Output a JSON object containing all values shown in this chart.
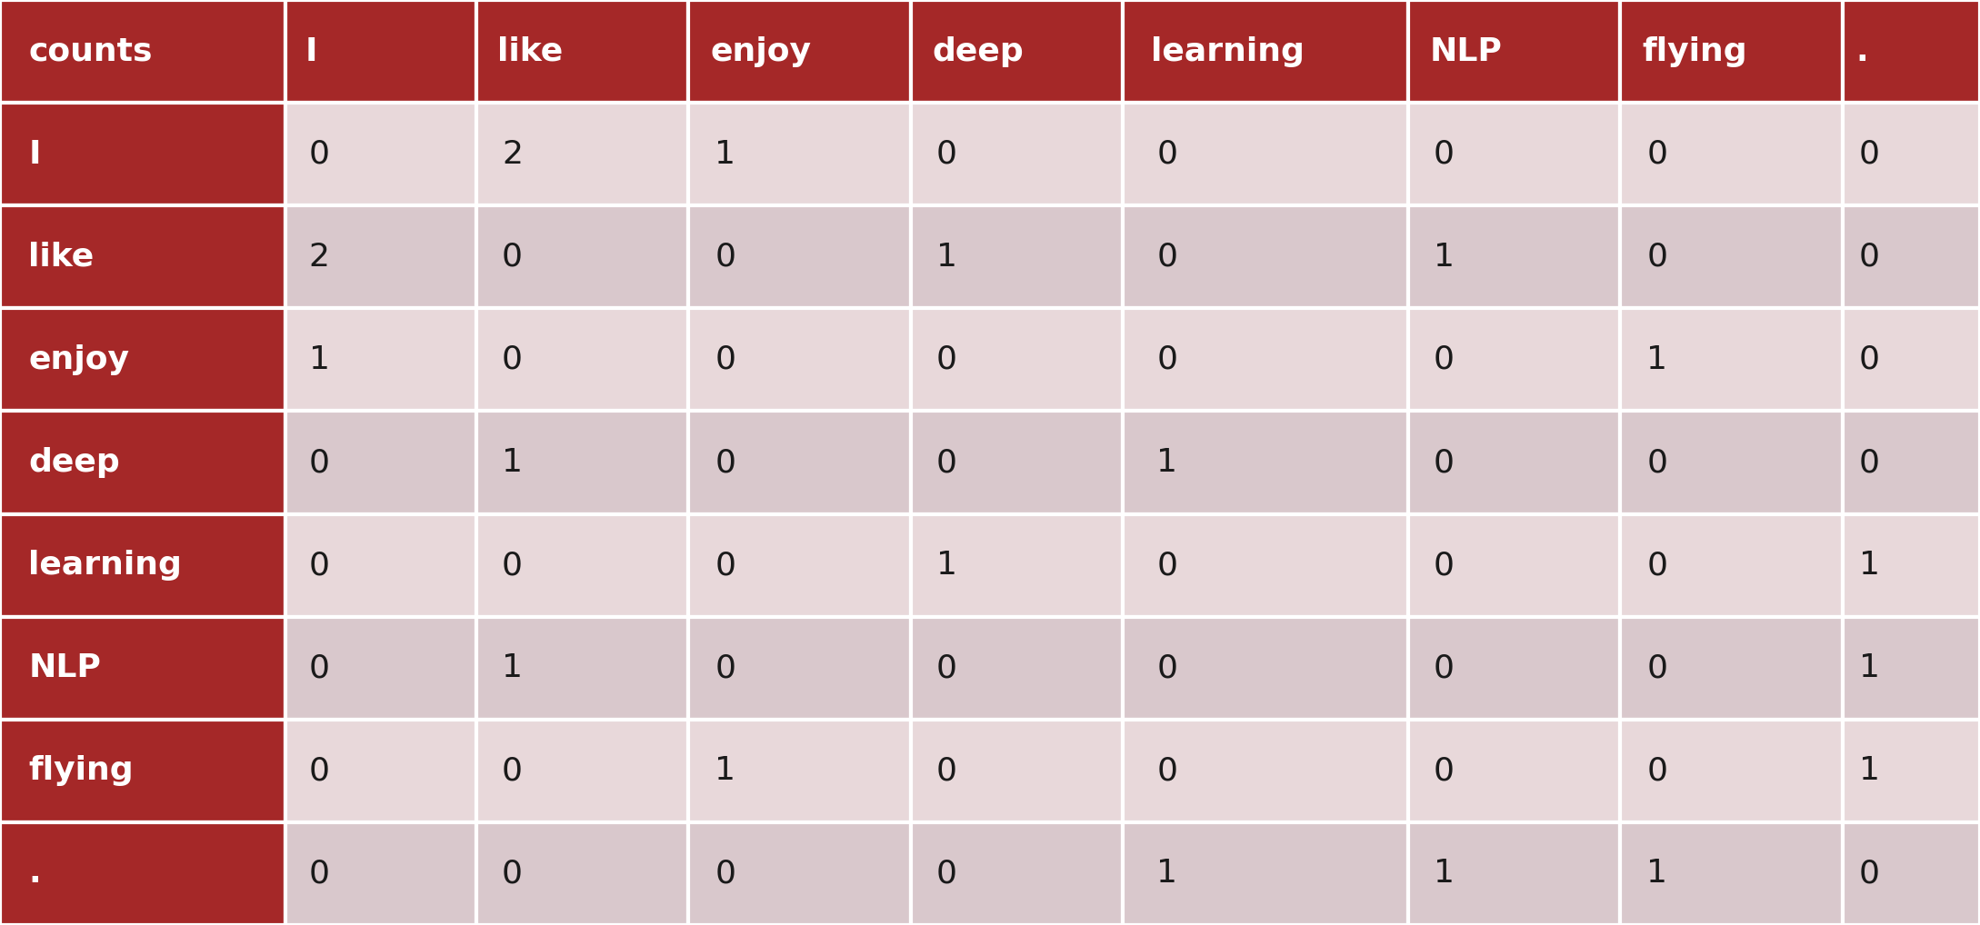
{
  "col_headers": [
    "counts",
    "I",
    "like",
    "enjoy",
    "deep",
    "learning",
    "NLP",
    "flying",
    "."
  ],
  "row_headers": [
    "I",
    "like",
    "enjoy",
    "deep",
    "learning",
    "NLP",
    "flying",
    "."
  ],
  "matrix": [
    [
      0,
      2,
      1,
      0,
      0,
      0,
      0,
      0
    ],
    [
      2,
      0,
      0,
      1,
      0,
      1,
      0,
      0
    ],
    [
      1,
      0,
      0,
      0,
      0,
      0,
      1,
      0
    ],
    [
      0,
      1,
      0,
      0,
      1,
      0,
      0,
      0
    ],
    [
      0,
      0,
      0,
      1,
      0,
      0,
      0,
      1
    ],
    [
      0,
      1,
      0,
      0,
      0,
      0,
      0,
      1
    ],
    [
      0,
      0,
      1,
      0,
      0,
      0,
      0,
      1
    ],
    [
      0,
      0,
      0,
      0,
      1,
      1,
      1,
      0
    ]
  ],
  "header_bg": "#A52828",
  "row_header_bg": "#A52828",
  "cell_bg_light": "#E8D8DA",
  "cell_bg_dark": "#D9C8CC",
  "header_text_color": "#FFFFFF",
  "cell_text_color": "#1a1a1a",
  "row_header_text_color": "#FFFFFF",
  "header_font_size": 26,
  "cell_font_size": 26,
  "row_header_font_size": 26,
  "grid_color": "#FFFFFF",
  "grid_linewidth": 3,
  "background_color": "#FFFFFF",
  "col_widths_raw": [
    1.35,
    0.9,
    1.0,
    1.05,
    1.0,
    1.35,
    1.0,
    1.05,
    0.65
  ],
  "fig_width": 21.78,
  "fig_height": 10.18
}
